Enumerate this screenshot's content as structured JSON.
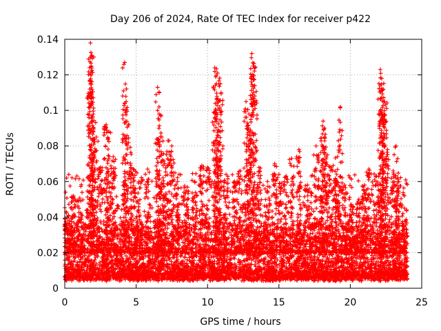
{
  "chart_data": {
    "type": "scatter",
    "title": "Day 206 of 2024, Rate Of TEC Index for receiver p422",
    "xlabel": "GPS time / hours",
    "ylabel": "ROTI / TECUs",
    "xlim": [
      0,
      25
    ],
    "ylim": [
      0,
      0.14
    ],
    "xticks": [
      "0",
      "5",
      "10",
      "15",
      "20",
      "25"
    ],
    "yticks": [
      "0",
      "0.02",
      "0.04",
      "0.06",
      "0.08",
      "0.1",
      "0.12",
      "0.14"
    ],
    "grid": true,
    "marker": "plus",
    "color": "#ff0000",
    "series": [
      {
        "values_note": "",
        "peaks": [
          [
            0.1,
            0.043
          ],
          [
            0.3,
            0.038
          ],
          [
            0.6,
            0.052
          ],
          [
            1.0,
            0.045
          ],
          [
            1.8,
            0.138
          ],
          [
            1.9,
            0.131
          ],
          [
            1.85,
            0.125
          ],
          [
            2.0,
            0.098
          ],
          [
            1.75,
            0.112
          ],
          [
            2.2,
            0.085
          ],
          [
            2.5,
            0.068
          ],
          [
            2.9,
            0.092
          ],
          [
            3.1,
            0.088
          ],
          [
            3.4,
            0.074
          ],
          [
            4.2,
            0.127
          ],
          [
            4.3,
            0.105
          ],
          [
            4.5,
            0.092
          ],
          [
            4.8,
            0.067
          ],
          [
            5.2,
            0.06
          ],
          [
            5.8,
            0.067
          ],
          [
            6.5,
            0.113
          ],
          [
            6.6,
            0.098
          ],
          [
            6.8,
            0.085
          ],
          [
            7.0,
            0.07
          ],
          [
            7.3,
            0.083
          ],
          [
            7.5,
            0.08
          ],
          [
            7.9,
            0.06
          ],
          [
            8.5,
            0.055
          ],
          [
            9.1,
            0.06
          ],
          [
            9.6,
            0.069
          ],
          [
            10.0,
            0.068
          ],
          [
            10.5,
            0.124
          ],
          [
            10.7,
            0.121
          ],
          [
            10.9,
            0.115
          ],
          [
            10.6,
            0.1
          ],
          [
            10.8,
            0.082
          ],
          [
            11.3,
            0.064
          ],
          [
            11.9,
            0.06
          ],
          [
            12.3,
            0.066
          ],
          [
            12.7,
            0.105
          ],
          [
            12.9,
            0.098
          ],
          [
            13.0,
            0.089
          ],
          [
            13.1,
            0.132
          ],
          [
            13.2,
            0.125
          ],
          [
            13.3,
            0.114
          ],
          [
            13.6,
            0.068
          ],
          [
            14.2,
            0.06
          ],
          [
            14.7,
            0.07
          ],
          [
            15.0,
            0.064
          ],
          [
            15.5,
            0.063
          ],
          [
            15.9,
            0.073
          ],
          [
            16.4,
            0.078
          ],
          [
            17.0,
            0.058
          ],
          [
            17.6,
            0.08
          ],
          [
            17.9,
            0.066
          ],
          [
            18.1,
            0.094
          ],
          [
            18.2,
            0.09
          ],
          [
            18.4,
            0.075
          ],
          [
            18.8,
            0.069
          ],
          [
            19.1,
            0.074
          ],
          [
            19.3,
            0.102
          ],
          [
            19.6,
            0.058
          ],
          [
            20.1,
            0.047
          ],
          [
            20.6,
            0.05
          ],
          [
            21.0,
            0.058
          ],
          [
            21.3,
            0.067
          ],
          [
            21.8,
            0.06
          ],
          [
            22.1,
            0.123
          ],
          [
            22.2,
            0.118
          ],
          [
            22.3,
            0.112
          ],
          [
            22.4,
            0.105
          ],
          [
            22.35,
            0.097
          ],
          [
            22.6,
            0.078
          ],
          [
            23.0,
            0.066
          ],
          [
            23.2,
            0.08
          ],
          [
            23.4,
            0.06
          ],
          [
            23.8,
            0.045
          ]
        ]
      }
    ]
  }
}
